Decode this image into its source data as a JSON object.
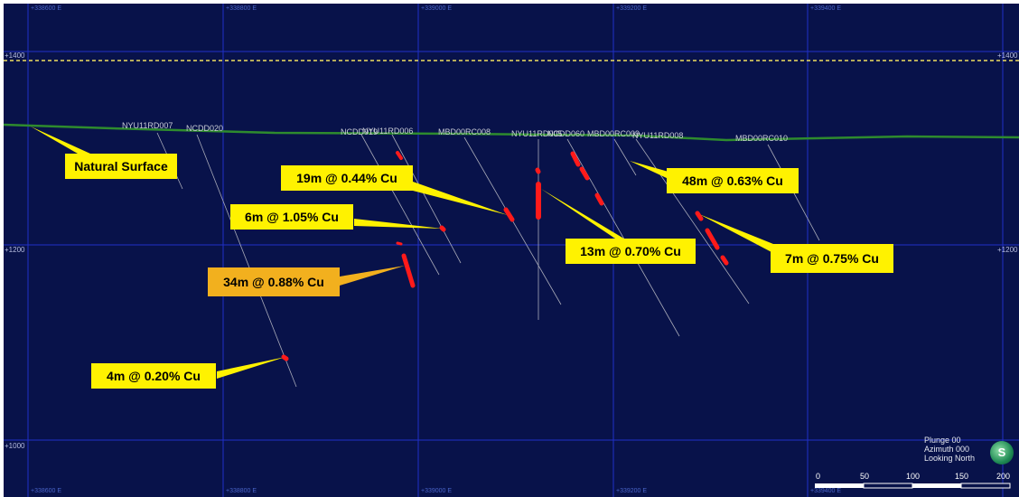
{
  "grid": {
    "easting_labels": [
      "+338600 E",
      "+338800 E",
      "+339000 E",
      "+339200 E",
      "+339400 E"
    ],
    "rl_labels": [
      "+1400",
      "+1200",
      "+1000"
    ]
  },
  "drillholes": [
    "NYU11RD007",
    "NCDD020",
    "NCDD019",
    "NYU11RD006",
    "MBD00RC008",
    "NYU11RD005",
    "NCDD060",
    "MBD00RC009",
    "NYU11RD008",
    "MBD00RC010"
  ],
  "annotations": {
    "natural_surface": "Natural Surface",
    "int_19m": "19m @ 0.44% Cu",
    "int_6m": "6m @ 1.05% Cu",
    "int_34m": "34m @ 0.88% Cu",
    "int_4m": "4m @ 0.20% Cu",
    "int_13m": "13m @ 0.70% Cu",
    "int_48m": "48m @ 0.63% Cu",
    "int_7m": "7m @ 0.75% Cu"
  },
  "view": {
    "plunge": "Plunge 00",
    "azimuth": "Azimuth 000",
    "direction": "Looking North",
    "compass_letter": "S"
  },
  "scale_bar": [
    "0",
    "50",
    "100",
    "150",
    "200"
  ],
  "colors": {
    "background": "#08124a",
    "gridline": "#2030c8",
    "surface": "#2e8b2e",
    "callout": "#fff200",
    "callout_highlight": "#f2b01e",
    "intercept": "#ff1a1a",
    "trace": "#a8aab8"
  }
}
